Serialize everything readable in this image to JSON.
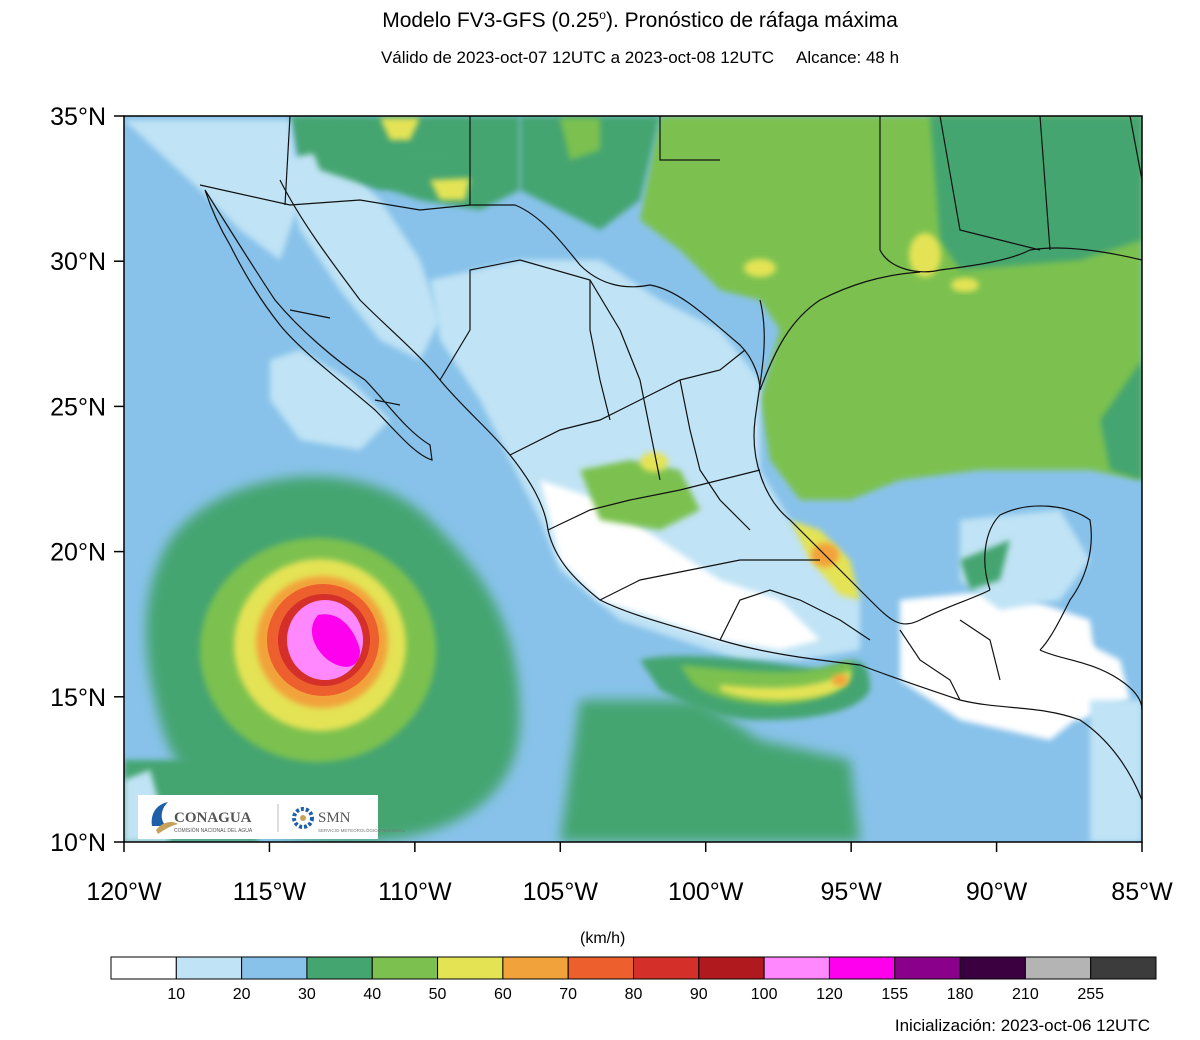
{
  "header": {
    "title_main": "Modelo FV3-GFS (0.25",
    "title_sup": "o",
    "title_rest": "). Pronóstico de ráfaga máxima",
    "validity": "Válido de 2023-oct-07 12UTC a 2023-oct-08 12UTC",
    "range": "Alcance: 48 h"
  },
  "map": {
    "lat_labels": [
      "35°N",
      "30°N",
      "25°N",
      "20°N",
      "15°N",
      "10°N"
    ],
    "lon_labels": [
      "120°W",
      "115°W",
      "110°W",
      "105°W",
      "100°W",
      "95°W",
      "90°W",
      "85°W"
    ],
    "extent": {
      "lon_min": -120,
      "lon_max": -85,
      "lat_min": 10,
      "lat_max": 35
    },
    "hurricane_center": {
      "lon": -113.5,
      "lat": 17.2
    }
  },
  "legend": {
    "units": "(km/h)",
    "ticks": [
      "10",
      "20",
      "30",
      "40",
      "50",
      "60",
      "70",
      "80",
      "90",
      "100",
      "120",
      "155",
      "180",
      "210",
      "255"
    ],
    "colors": [
      "#ffffff",
      "#c0e3f5",
      "#88c2ea",
      "#45a571",
      "#7cc14f",
      "#e4e354",
      "#f2a23a",
      "#ed5f2c",
      "#d42f28",
      "#b0191d",
      "#ff88ff",
      "#ff00ee",
      "#8b008b",
      "#3a0040",
      "#b4b4b4",
      "#3c3c3c"
    ]
  },
  "logos": {
    "conagua": "CONAGUA",
    "conagua_sub": "COMISIÓN NACIONAL DEL AGUA",
    "smn": "SMN",
    "smn_sub": "SERVICIO METEOROLÓGICO NACIONAL"
  },
  "footer": {
    "init": "Inicialización: 2023-oct-06 12UTC"
  }
}
